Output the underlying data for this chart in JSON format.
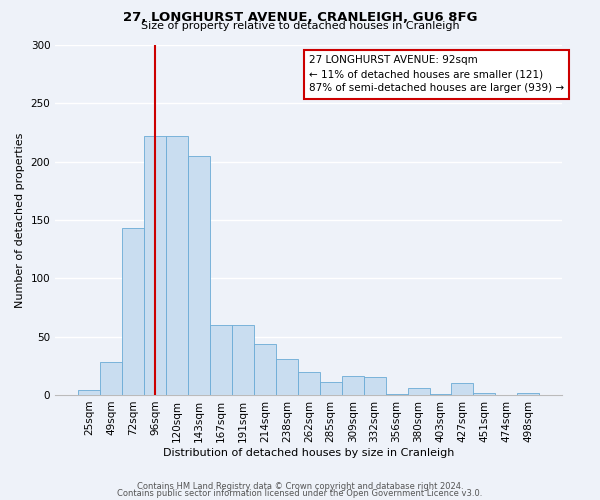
{
  "title": "27, LONGHURST AVENUE, CRANLEIGH, GU6 8FG",
  "subtitle": "Size of property relative to detached houses in Cranleigh",
  "xlabel": "Distribution of detached houses by size in Cranleigh",
  "ylabel": "Number of detached properties",
  "categories": [
    "25sqm",
    "49sqm",
    "72sqm",
    "96sqm",
    "120sqm",
    "143sqm",
    "167sqm",
    "191sqm",
    "214sqm",
    "238sqm",
    "262sqm",
    "285sqm",
    "309sqm",
    "332sqm",
    "356sqm",
    "380sqm",
    "403sqm",
    "427sqm",
    "451sqm",
    "474sqm",
    "498sqm"
  ],
  "values": [
    4,
    28,
    143,
    222,
    222,
    205,
    60,
    60,
    44,
    31,
    20,
    11,
    16,
    15,
    1,
    6,
    1,
    10,
    2,
    0,
    2
  ],
  "bar_color": "#c9ddf0",
  "bar_edge_color": "#6aabd6",
  "bar_width": 1.0,
  "vline_x": 3,
  "vline_color": "#cc0000",
  "annotation_text": "27 LONGHURST AVENUE: 92sqm\n← 11% of detached houses are smaller (121)\n87% of semi-detached houses are larger (939) →",
  "annotation_box_color": "#ffffff",
  "annotation_box_edge": "#cc0000",
  "ylim": [
    0,
    300
  ],
  "yticks": [
    0,
    50,
    100,
    150,
    200,
    250,
    300
  ],
  "footer1": "Contains HM Land Registry data © Crown copyright and database right 2024.",
  "footer2": "Contains public sector information licensed under the Open Government Licence v3.0.",
  "bg_color": "#eef2f9",
  "plot_bg_color": "#eef2f9",
  "grid_color": "#ffffff",
  "title_fontsize": 9.5,
  "subtitle_fontsize": 8.0,
  "ylabel_fontsize": 8.0,
  "xlabel_fontsize": 8.0,
  "tick_fontsize": 7.5,
  "annotation_fontsize": 7.5,
  "footer_fontsize": 6.0
}
